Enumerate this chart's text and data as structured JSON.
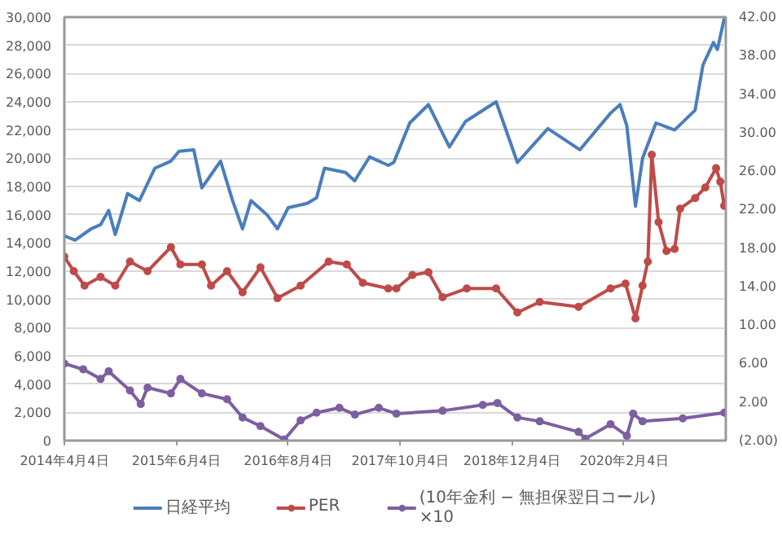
{
  "chart_data": {
    "type": "line",
    "xlim": [
      "2014-04-04",
      "2021-02-26"
    ],
    "xticks": [
      {
        "value": "2014-04-04",
        "label": "2014年4月4日"
      },
      {
        "value": "2015-06-04",
        "label": "2015年6月4日"
      },
      {
        "value": "2016-08-04",
        "label": "2016年8月4日"
      },
      {
        "value": "2017-10-04",
        "label": "2017年10月4日"
      },
      {
        "value": "2018-12-04",
        "label": "2018年12月4日"
      },
      {
        "value": "2020-02-04",
        "label": "2020年2月4日"
      }
    ],
    "ylim": [
      0,
      30000
    ],
    "yticks": [
      0,
      {
        "value": 2000,
        "label": "2,000"
      },
      {
        "value": 4000,
        "label": "4,000"
      },
      {
        "value": 6000,
        "label": "6,000"
      },
      {
        "value": 8000,
        "label": "8,000"
      },
      {
        "value": 10000,
        "label": "10,000"
      },
      {
        "value": 12000,
        "label": "12,000"
      },
      {
        "value": 14000,
        "label": "14,000"
      },
      {
        "value": 16000,
        "label": "16,000"
      },
      {
        "value": 18000,
        "label": "18,000"
      },
      {
        "value": 20000,
        "label": "20,000"
      },
      {
        "value": 22000,
        "label": "22,000"
      },
      {
        "value": 24000,
        "label": "24,000"
      },
      {
        "value": 26000,
        "label": "26,000"
      },
      {
        "value": 28000,
        "label": "28,000"
      },
      {
        "value": 30000,
        "label": "30,000"
      }
    ],
    "y2lim": [
      -2,
      42
    ],
    "y2ticks": [
      {
        "value": -2,
        "label": "(2.00)"
      },
      {
        "value": 2,
        "label": "2.00"
      },
      {
        "value": 6,
        "label": "6.00"
      },
      {
        "value": 10,
        "label": "10.00"
      },
      {
        "value": 14,
        "label": "14.00"
      },
      {
        "value": 18,
        "label": "18.00"
      },
      {
        "value": 22,
        "label": "22.00"
      },
      {
        "value": 26,
        "label": "26.00"
      },
      {
        "value": 30,
        "label": "30.00"
      },
      {
        "value": 34,
        "label": "34.00"
      },
      {
        "value": 38,
        "label": "38.00"
      },
      {
        "value": 42,
        "label": "42.00"
      }
    ],
    "grid": "y",
    "legend": "bottom",
    "series": [
      {
        "name": "日経平均",
        "color": "#4a7ebb",
        "marker": "none",
        "x": [
          "2014-04-04",
          "2014-05-15",
          "2014-07-15",
          "2014-08-20",
          "2014-09-20",
          "2014-10-15",
          "2014-12-01",
          "2015-01-15",
          "2015-03-15",
          "2015-05-15",
          "2015-06-15",
          "2015-08-10",
          "2015-09-10",
          "2015-11-20",
          "2016-01-05",
          "2016-02-12",
          "2016-03-15",
          "2016-05-15",
          "2016-06-24",
          "2016-08-04",
          "2016-10-15",
          "2016-11-20",
          "2016-12-20",
          "2017-03-10",
          "2017-04-14",
          "2017-06-10",
          "2017-08-20",
          "2017-09-10",
          "2017-11-10",
          "2018-01-20",
          "2018-03-25",
          "2018-04-10",
          "2018-06-10",
          "2018-10-05",
          "2018-12-25",
          "2019-04-20",
          "2019-08-20",
          "2019-12-15",
          "2020-01-20",
          "2020-02-15",
          "2020-03-19",
          "2020-04-15",
          "2020-06-05",
          "2020-08-15",
          "2020-11-01",
          "2020-12-01",
          "2021-01-10",
          "2021-01-25",
          "2021-02-20"
        ],
        "values": [
          14500,
          14200,
          15000,
          15300,
          16300,
          14600,
          17500,
          17000,
          19300,
          19800,
          20500,
          20600,
          17900,
          19800,
          17000,
          15000,
          17000,
          16000,
          15000,
          16500,
          16800,
          17200,
          19300,
          19000,
          18400,
          20100,
          19500,
          19700,
          22500,
          23800,
          21400,
          20800,
          22600,
          24000,
          19700,
          22100,
          20600,
          23200,
          23800,
          22300,
          16600,
          20000,
          22500,
          22000,
          23400,
          26600,
          28200,
          27700,
          29900
        ]
      },
      {
        "name": "PER",
        "color": "#be4b48",
        "marker": "circle",
        "axis": "y2",
        "x": [
          "2014-04-04",
          "2014-05-10",
          "2014-06-20",
          "2014-08-20",
          "2014-10-15",
          "2014-12-10",
          "2015-02-15",
          "2015-05-15",
          "2015-06-20",
          "2015-09-10",
          "2015-10-15",
          "2015-12-15",
          "2016-02-12",
          "2016-04-20",
          "2016-06-24",
          "2016-09-20",
          "2017-01-05",
          "2017-03-15",
          "2017-05-15",
          "2017-08-20",
          "2017-09-20",
          "2017-11-20",
          "2018-01-20",
          "2018-03-15",
          "2018-06-15",
          "2018-10-05",
          "2018-12-25",
          "2019-03-20",
          "2019-08-15",
          "2019-12-15",
          "2020-02-10",
          "2020-03-19",
          "2020-04-15",
          "2020-05-05",
          "2020-05-20",
          "2020-06-15",
          "2020-07-15",
          "2020-08-15",
          "2020-09-05",
          "2020-11-01",
          "2020-12-10",
          "2021-01-20",
          "2021-02-05",
          "2021-02-20"
        ],
        "values": [
          17.1,
          15.6,
          14.1,
          15.0,
          14.1,
          16.6,
          15.6,
          18.1,
          16.3,
          16.3,
          14.1,
          15.6,
          13.4,
          16.0,
          12.8,
          14.1,
          16.6,
          16.3,
          14.4,
          13.8,
          13.8,
          15.2,
          15.5,
          12.9,
          13.8,
          13.8,
          11.3,
          12.4,
          11.9,
          13.8,
          14.3,
          10.7,
          14.1,
          16.6,
          27.7,
          20.7,
          17.7,
          17.9,
          22.1,
          23.2,
          24.3,
          26.3,
          24.9,
          22.4
        ]
      },
      {
        "name": "(10年金利 − 無担保翌日コール)\n×10",
        "color": "#7d5fa0",
        "marker": "circle",
        "axis": "y2",
        "x": [
          "2014-04-04",
          "2014-06-15",
          "2014-08-20",
          "2014-09-20",
          "2014-12-10",
          "2015-01-20",
          "2015-02-15",
          "2015-05-15",
          "2015-06-20",
          "2015-09-10",
          "2015-12-15",
          "2016-02-12",
          "2016-04-20",
          "2016-07-20",
          "2016-09-20",
          "2016-11-20",
          "2017-02-15",
          "2017-04-15",
          "2017-07-15",
          "2017-09-20",
          "2018-03-15",
          "2018-08-15",
          "2018-10-10",
          "2018-12-25",
          "2019-03-20",
          "2019-08-15",
          "2019-09-10",
          "2019-12-15",
          "2020-02-15",
          "2020-03-10",
          "2020-04-15",
          "2020-09-15",
          "2021-02-20"
        ],
        "values": [
          6.0,
          5.4,
          4.4,
          5.2,
          3.2,
          1.8,
          3.5,
          2.9,
          4.4,
          2.9,
          2.3,
          0.4,
          -0.5,
          -1.9,
          0.1,
          0.9,
          1.4,
          0.7,
          1.4,
          0.8,
          1.1,
          1.7,
          1.9,
          0.4,
          0.0,
          -1.1,
          -1.8,
          -0.3,
          -1.5,
          0.8,
          0.0,
          0.3,
          0.9
        ]
      }
    ]
  }
}
